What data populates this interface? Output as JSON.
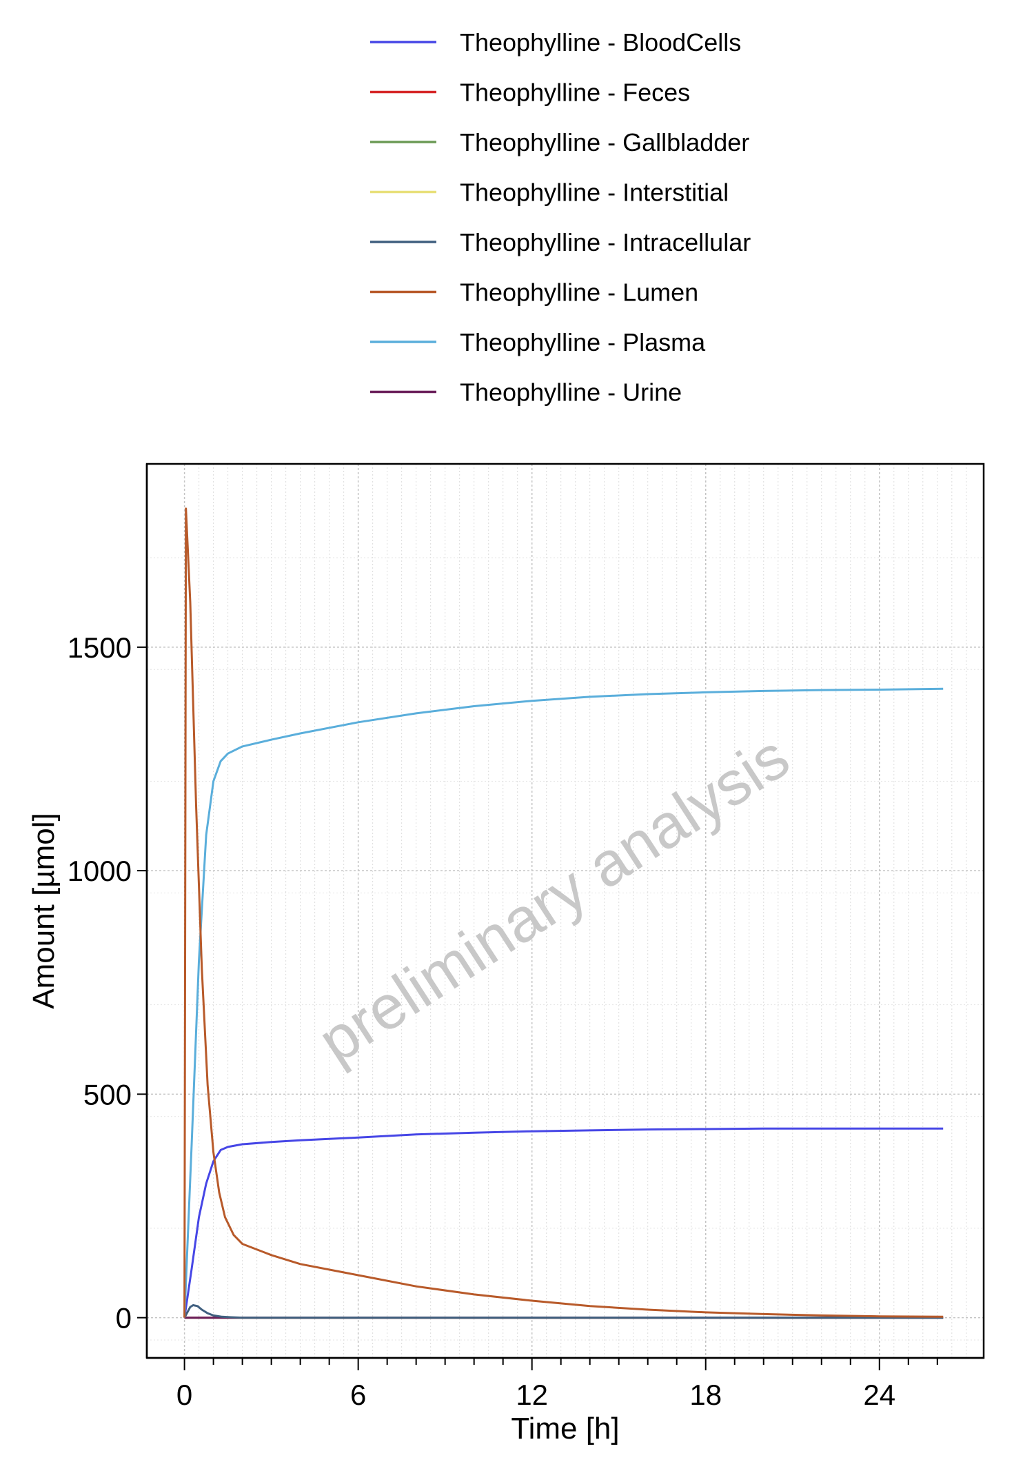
{
  "chart_data": {
    "type": "line",
    "xlabel": "Time [h]",
    "ylabel": "Amount [µmol]",
    "xlim": [
      -1.3,
      27.6
    ],
    "ylim": [
      -90,
      1910
    ],
    "xticks": [
      0,
      6,
      12,
      18,
      24
    ],
    "yticks": [
      0,
      500,
      1000,
      1500
    ],
    "grid": true,
    "legend_position": "top",
    "watermark": "preliminary analysis",
    "series": [
      {
        "name": "Theophylline - BloodCells",
        "color": "#4646e6",
        "x": [
          0,
          0.25,
          0.5,
          0.75,
          1,
          1.25,
          1.5,
          2,
          3,
          4,
          6,
          8,
          10,
          12,
          14,
          16,
          18,
          20,
          22,
          24,
          26.2
        ],
        "y": [
          0,
          110,
          225,
          300,
          350,
          375,
          382,
          388,
          393,
          397,
          403,
          410,
          414,
          417,
          419,
          421,
          422,
          423,
          423,
          423,
          423
        ]
      },
      {
        "name": "Theophylline - Feces",
        "color": "#d62728",
        "x": [
          0,
          26.2
        ],
        "y": [
          0,
          0
        ]
      },
      {
        "name": "Theophylline - Gallbladder",
        "color": "#6b9a55",
        "x": [
          0,
          26.2
        ],
        "y": [
          0,
          0
        ]
      },
      {
        "name": "Theophylline - Interstitial",
        "color": "#e8e07a",
        "x": [
          0,
          26.2
        ],
        "y": [
          0,
          0
        ]
      },
      {
        "name": "Theophylline - Intracellular",
        "color": "#3f5f7f",
        "x": [
          0,
          0.1,
          0.2,
          0.3,
          0.45,
          0.6,
          0.8,
          1.0,
          1.3,
          1.6,
          2,
          26.2
        ],
        "y": [
          0,
          12,
          24,
          28,
          26,
          18,
          10,
          5,
          2,
          1,
          0,
          0
        ]
      },
      {
        "name": "Theophylline - Lumen",
        "color": "#b85a2a",
        "x": [
          0,
          0.05,
          0.2,
          0.4,
          0.6,
          0.8,
          1.0,
          1.2,
          1.4,
          1.7,
          2,
          3,
          4,
          6,
          8,
          10,
          12,
          14,
          16,
          18,
          20,
          22,
          24,
          26.2
        ],
        "y": [
          0,
          1810,
          1600,
          1150,
          780,
          520,
          370,
          280,
          225,
          185,
          165,
          140,
          120,
          95,
          70,
          52,
          38,
          26,
          18,
          12,
          8,
          5,
          3,
          2
        ]
      },
      {
        "name": "Theophylline - Plasma",
        "color": "#5aaedb",
        "x": [
          0,
          0.25,
          0.5,
          0.75,
          1,
          1.25,
          1.5,
          2,
          3,
          4,
          6,
          8,
          10,
          12,
          14,
          16,
          18,
          20,
          22,
          24,
          26.2
        ],
        "y": [
          0,
          390,
          800,
          1080,
          1200,
          1245,
          1262,
          1278,
          1293,
          1307,
          1332,
          1352,
          1368,
          1380,
          1389,
          1395,
          1399,
          1402,
          1404,
          1405,
          1407
        ]
      },
      {
        "name": "Theophylline - Urine",
        "color": "#6a1f5a",
        "x": [
          0,
          26.2
        ],
        "y": [
          0,
          0
        ]
      }
    ]
  }
}
